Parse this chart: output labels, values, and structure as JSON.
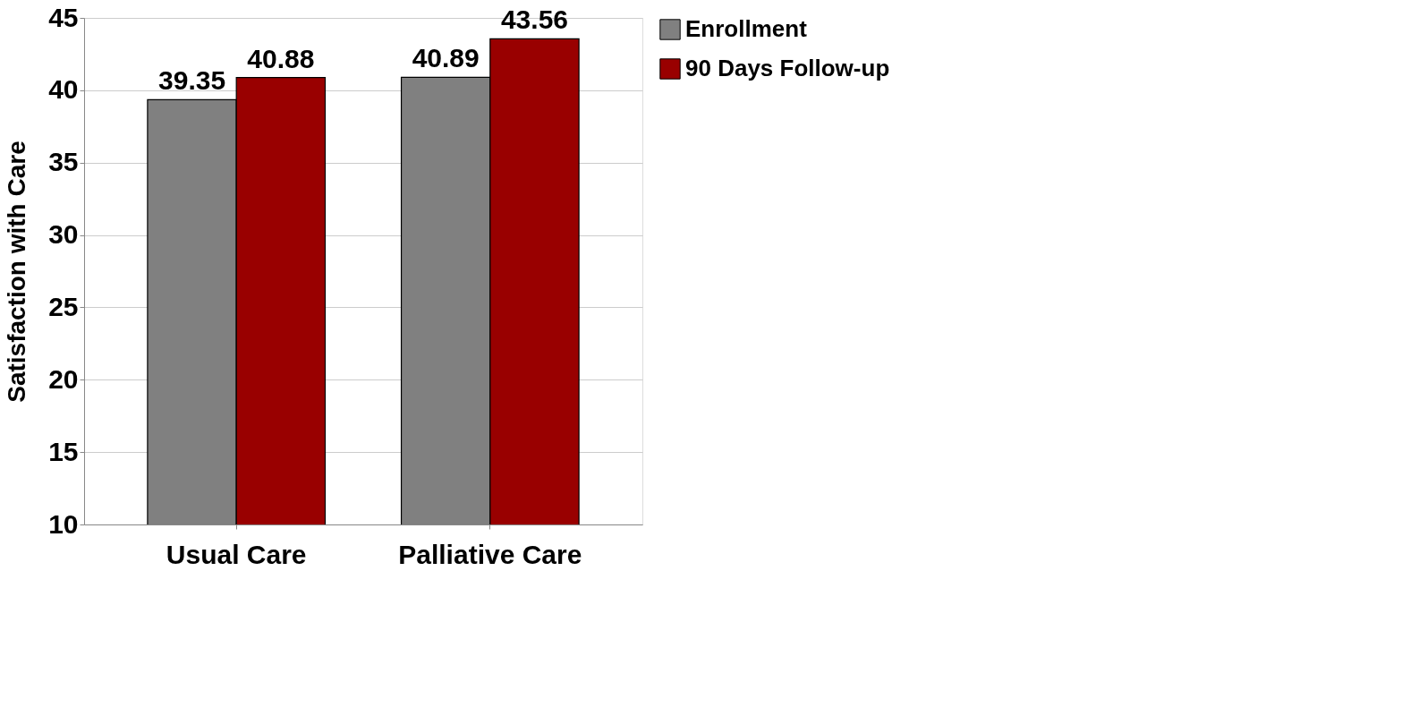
{
  "chart_data": {
    "type": "bar",
    "ylabel": "Satisfaction with Care",
    "categories": [
      "Usual Care",
      "Palliative Care"
    ],
    "series": [
      {
        "name": "Enrollment",
        "color": "#808080",
        "values": [
          39.35,
          40.89
        ]
      },
      {
        "name": "90 Days Follow-up",
        "color": "#990000",
        "values": [
          40.88,
          43.56
        ]
      }
    ],
    "ylim": [
      10,
      45
    ],
    "yticks": [
      10,
      15,
      20,
      25,
      30,
      35,
      40,
      45
    ],
    "grid": "y",
    "legend": "right",
    "data_labels": true
  }
}
